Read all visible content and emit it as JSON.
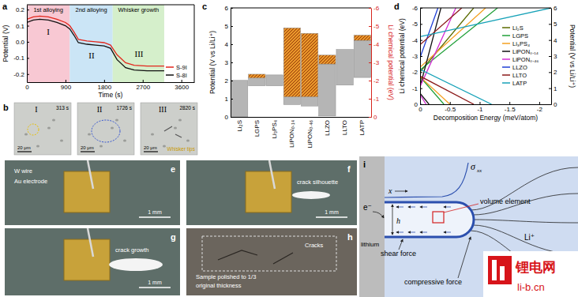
{
  "chart_data": [
    {
      "type": "line",
      "title": "a",
      "x_label": "Time (s)",
      "y_label": "Potential (V)",
      "xlim": [
        0,
        3900
      ],
      "xticks": [
        0,
        900,
        1800,
        2700,
        3600
      ],
      "ylim": [
        -0.25,
        0.23
      ],
      "yticks": [
        -0.2,
        -0.1,
        {
          "value": 0,
          "label": "0.0"
        },
        0.1,
        0.2
      ],
      "x": [
        0,
        150,
        300,
        500,
        700,
        900,
        1000,
        1100,
        1200,
        1400,
        1600,
        1800,
        1950,
        2100,
        2300,
        2500,
        2800,
        3000,
        3200
      ],
      "series": [
        {
          "name": "S-9I",
          "color": "#e3261c",
          "values": [
            0.14,
            0.155,
            0.16,
            0.155,
            0.14,
            0.12,
            0.1,
            0.06,
            0.015,
            0.005,
            0.0,
            -0.005,
            -0.02,
            -0.08,
            -0.13,
            -0.145,
            -0.15,
            -0.15,
            -0.15
          ]
        },
        {
          "name": "S-8I",
          "color": "#111111",
          "values": [
            0.12,
            0.135,
            0.14,
            0.135,
            0.12,
            0.1,
            0.08,
            0.04,
            -0.005,
            -0.015,
            -0.02,
            -0.025,
            -0.04,
            -0.11,
            -0.16,
            -0.175,
            -0.18,
            -0.18,
            -0.18
          ]
        }
      ],
      "regions": [
        {
          "name": "1st alloying",
          "from": 0,
          "to": 1000,
          "color": "#f8c8d3"
        },
        {
          "name": "2nd alloying",
          "from": 1000,
          "to": 2000,
          "color": "#cbe5f6"
        },
        {
          "name": "Whisker growth",
          "from": 2000,
          "to": 3200,
          "color": "#d5efcb"
        }
      ],
      "annotations": [
        "I",
        "II",
        "III"
      ],
      "legend": "lower right"
    },
    {
      "type": "range_bar",
      "title": "c",
      "categories": [
        "Li₂S",
        "LGPS",
        "Li₃PS₄",
        "LiPON₀.₁₄",
        "LiPON₀.₄₆",
        "LLZO",
        "LLTO",
        "LATP"
      ],
      "y_label": "Potential (V vs Li/Li⁺)",
      "ylim": [
        0,
        6
      ],
      "yticks": [
        0,
        1,
        2,
        3,
        4,
        5,
        6
      ],
      "y2_label": "Li chemical potential (eV)",
      "y2lim": [
        0,
        -6
      ],
      "y2ticks": [
        0,
        -1,
        -2,
        -3,
        -4,
        -5,
        -6
      ],
      "series": [
        {
          "color": "#b5b5b5",
          "low": [
            0,
            1.71,
            1.71,
            0.68,
            0.6,
            0.05,
            1.75,
            2.17
          ],
          "high": [
            2.01,
            2.14,
            2.31,
            1.1,
            1.1,
            2.91,
            3.71,
            4.21
          ]
        },
        {
          "color": "#e8962a",
          "marker": "hatched",
          "low": [
            null,
            2.14,
            null,
            1.1,
            1.1,
            2.91,
            null,
            4.21
          ],
          "high": [
            null,
            2.35,
            null,
            4.9,
            4.6,
            3.4,
            null,
            4.5
          ]
        }
      ]
    },
    {
      "type": "line",
      "title": "d",
      "x_label": "Decomposition Energy (meV/atom)",
      "y_label": "Li chemical potential (eV)",
      "y2_label": "Potential (V vs Li/Li⁺)",
      "xlim": [
        0,
        -2.2
      ],
      "xticks": [
        0,
        -0.5,
        -1,
        -1.5,
        -2
      ],
      "ylim": [
        0,
        -6
      ],
      "yticks": [
        0,
        -1,
        -2,
        -3,
        -4,
        -5,
        -6
      ],
      "y2lim": [
        0,
        6
      ],
      "y2ticks": [
        0,
        1,
        2,
        3,
        4,
        5,
        6
      ],
      "series": [
        {
          "name": "Li₂S",
          "color": "#5b6b00",
          "x": [
            0,
            0,
            -0.9
          ],
          "values": [
            0,
            -2.01,
            -6
          ]
        },
        {
          "name": "LGPS",
          "color": "#22a03a",
          "x": [
            -0.4,
            0,
            0,
            -1.3
          ],
          "values": [
            0,
            -1.71,
            -2.14,
            -6
          ]
        },
        {
          "name": "Li₃PS₄",
          "color": "#f4a020",
          "x": [
            -0.5,
            0,
            0,
            -1.1
          ],
          "values": [
            0,
            -1.71,
            -2.31,
            -6
          ]
        },
        {
          "name": "LiPON₀.₁₄",
          "color": "#111111",
          "x": [
            -0.15,
            0,
            0,
            -0.35
          ],
          "values": [
            0,
            -0.68,
            -1.1,
            -6
          ]
        },
        {
          "name": "LiPON₀.₄₆",
          "color": "#d42fd4",
          "x": [
            -0.1,
            0,
            0,
            -0.6
          ],
          "values": [
            0,
            -0.6,
            -1.1,
            -6
          ]
        },
        {
          "name": "LLZO",
          "color": "#1f3fd6",
          "x": [
            -0.02,
            0,
            0,
            -0.3
          ],
          "values": [
            0,
            -0.05,
            -2.91,
            -6
          ]
        },
        {
          "name": "LLTO",
          "color": "#8b1a1a",
          "x": [
            -0.9,
            0,
            0,
            -0.7
          ],
          "values": [
            0,
            -1.75,
            -3.71,
            -6
          ]
        },
        {
          "name": "LATP",
          "color": "#17a2b8",
          "x": [
            -1.2,
            0,
            0,
            -2.2
          ],
          "values": [
            0,
            -2.17,
            -4.21,
            -6
          ]
        }
      ],
      "legend": "right"
    }
  ],
  "micrographs": {
    "label": "b",
    "panels": [
      {
        "label": "I",
        "time": "313 s",
        "scale_bar": "20 μm"
      },
      {
        "label": "II",
        "time": "1726 s",
        "scale_bar": "20 μm"
      },
      {
        "label": "III",
        "time": "2820 s",
        "scale_bar": "20 μm",
        "annotation": "Whisker tips"
      }
    ]
  },
  "photos": {
    "panels": [
      {
        "label": "e",
        "texts": [
          "W wire",
          "Au electrode"
        ],
        "scale_bar": "1 mm"
      },
      {
        "label": "f",
        "texts": [
          "crack silhouette"
        ],
        "scale_bar": "1 mm"
      },
      {
        "label": "g",
        "texts": [
          "crack growth"
        ],
        "scale_bar": "1 mm"
      },
      {
        "label": "h",
        "texts": [
          "Cracks",
          "Sample polished to 1/3",
          "original thickness"
        ]
      }
    ]
  },
  "diagram": {
    "label": "i",
    "stress": "σ",
    "stress_subscript": "xx",
    "axis": "x",
    "electron": "e⁻",
    "height": "h",
    "lithium": "lithium",
    "volume_element": "volume element",
    "ion": "Li⁺",
    "shear_force": "shear force",
    "compressive_force": "compressive force"
  },
  "watermark": {
    "name": "锂电网",
    "url": "li-b.cn"
  }
}
